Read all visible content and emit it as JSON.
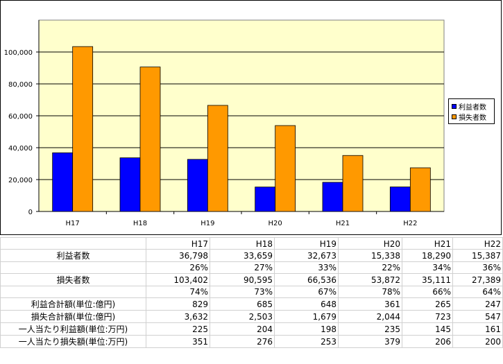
{
  "chart_data": {
    "type": "bar",
    "categories": [
      "H17",
      "H18",
      "H19",
      "H20",
      "H21",
      "H22"
    ],
    "series": [
      {
        "name": "利益者数",
        "values": [
          36798,
          33659,
          32673,
          15338,
          18290,
          15387
        ],
        "color": "#0000ff"
      },
      {
        "name": "損失者数",
        "values": [
          103402,
          90595,
          66536,
          53872,
          35111,
          27389
        ],
        "color": "#ff9900"
      }
    ],
    "yticks": [
      "0",
      "20,000",
      "40,000",
      "60,000",
      "80,000",
      "100,000"
    ],
    "ylim": [
      0,
      120000
    ],
    "plot_background": "#ffffcc",
    "grid": true,
    "legend": "right"
  },
  "table": {
    "columns": [
      "H17",
      "H18",
      "H19",
      "H20",
      "H21",
      "H22"
    ],
    "rows": [
      {
        "label": "利益者数",
        "values": [
          "36,798",
          "33,659",
          "32,673",
          "15,338",
          "18,290",
          "15,387"
        ]
      },
      {
        "label": "",
        "values": [
          "26%",
          "27%",
          "33%",
          "22%",
          "34%",
          "36%"
        ]
      },
      {
        "label": "損失者数",
        "values": [
          "103,402",
          "90,595",
          "66,536",
          "53,872",
          "35,111",
          "27,389"
        ]
      },
      {
        "label": "",
        "values": [
          "74%",
          "73%",
          "67%",
          "78%",
          "66%",
          "64%"
        ]
      },
      {
        "label": "利益合計額(単位:億円)",
        "values": [
          "829",
          "685",
          "648",
          "361",
          "265",
          "247"
        ]
      },
      {
        "label": "損失合計額(単位:億円)",
        "values": [
          "3,632",
          "2,503",
          "1,679",
          "2,044",
          "723",
          "547"
        ]
      },
      {
        "label": "一人当たり利益額(単位:万円)",
        "values": [
          "225",
          "204",
          "198",
          "235",
          "145",
          "161"
        ]
      },
      {
        "label": "一人当たり損失額(単位:万円)",
        "values": [
          "351",
          "276",
          "253",
          "379",
          "206",
          "200"
        ]
      }
    ]
  }
}
